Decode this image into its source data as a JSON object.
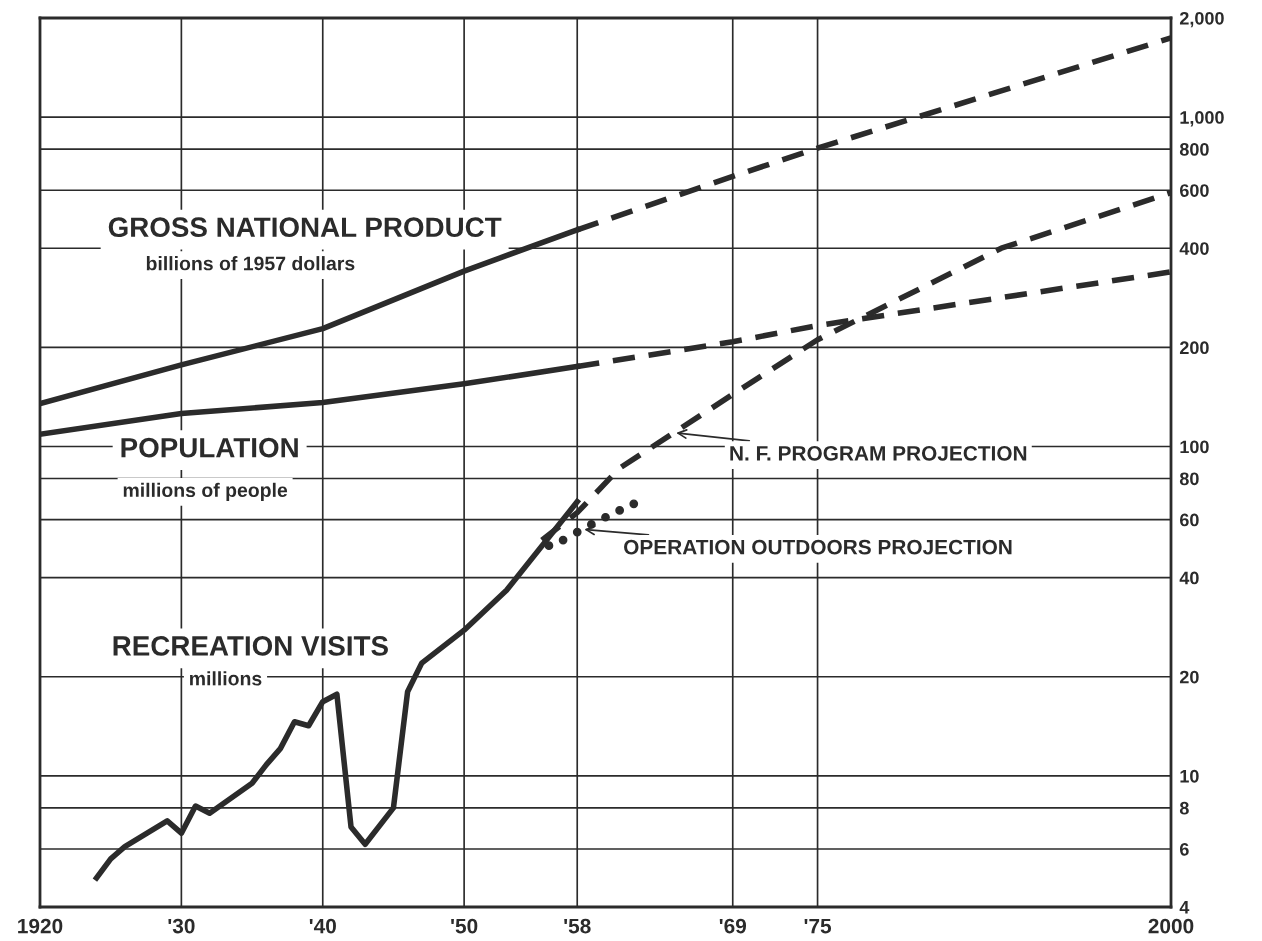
{
  "chart_data": {
    "type": "line",
    "log": "y",
    "grid": true,
    "xlim": [
      1920,
      2000
    ],
    "xticks": [
      {
        "value": 1920,
        "label": "1920"
      },
      {
        "value": 1930,
        "label": "'30"
      },
      {
        "value": 1940,
        "label": "'40"
      },
      {
        "value": 1950,
        "label": "'50"
      },
      {
        "value": 1958,
        "label": "'58"
      },
      {
        "value": 1969,
        "label": "'69"
      },
      {
        "value": 1975,
        "label": "'75"
      },
      {
        "value": 2000,
        "label": "2000"
      }
    ],
    "ylim": [
      4,
      2000
    ],
    "yticks": [
      4,
      6,
      8,
      10,
      20,
      40,
      60,
      80,
      100,
      200,
      400,
      600,
      800,
      {
        "value": 1000,
        "label": "1,000"
      },
      {
        "value": 2000,
        "label": "2,000"
      }
    ],
    "tick_labels": "xy",
    "series": [
      {
        "line_style": "solid",
        "color": "#2b2b2b",
        "x": [
          1920,
          1930,
          1940,
          1950,
          1958
        ],
        "values": [
          135,
          177,
          228,
          341,
          455
        ]
      },
      {
        "line_style": "dashed",
        "color": "#2b2b2b",
        "x": [
          1958,
          1969,
          1975,
          2000
        ],
        "values": [
          455,
          661,
          805,
          1740
        ]
      },
      {
        "line_style": "solid",
        "color": "#2b2b2b",
        "x": [
          1920,
          1930,
          1940,
          1950,
          1958
        ],
        "values": [
          109,
          126,
          136,
          155,
          175
        ]
      },
      {
        "line_style": "dashed",
        "color": "#2b2b2b",
        "x": [
          1958,
          1969,
          1975,
          2000
        ],
        "values": [
          175,
          208,
          233,
          339
        ]
      },
      {
        "line_style": "solid",
        "color": "#2b2b2b",
        "x": [
          1924,
          1925,
          1926,
          1929,
          1930,
          1931,
          1932,
          1935,
          1936,
          1937,
          1938,
          1939,
          1940,
          1941,
          1942,
          1943,
          1945,
          1946,
          1947,
          1950,
          1953,
          1958
        ],
        "values": [
          4.9,
          5.6,
          6.1,
          7.3,
          6.7,
          8.1,
          7.7,
          9.5,
          10.8,
          12.1,
          14.6,
          14.2,
          16.8,
          17.7,
          7.0,
          6.2,
          8.0,
          18,
          22,
          27.7,
          36.6,
          68
        ]
      },
      {
        "line_style": "dashed",
        "color": "#2b2b2b",
        "x": [
          1955.5,
          1958,
          1961,
          1969,
          1975,
          1988,
          2000
        ],
        "values": [
          52,
          63,
          86,
          144,
          211,
          400,
          590
        ]
      },
      {
        "type": "scatter",
        "marker": "circle",
        "color": "#2b2b2b",
        "x": [
          1956,
          1957,
          1958,
          1959,
          1960,
          1961,
          1962
        ],
        "values": [
          50,
          52,
          55,
          58,
          61,
          64,
          67
        ]
      }
    ],
    "annotations": [
      "GROSS NATIONAL PRODUCT",
      "billions of 1957 dollars",
      "POPULATION",
      "millions of people",
      "RECREATION VISITS",
      "millions",
      {
        "text": "N. F. PROGRAM PROJECTION",
        "x": 1965,
        "y": 110
      },
      {
        "text": "OPERATION OUTDOORS PROJECTION",
        "x": 1958.5,
        "y": 56
      }
    ]
  }
}
